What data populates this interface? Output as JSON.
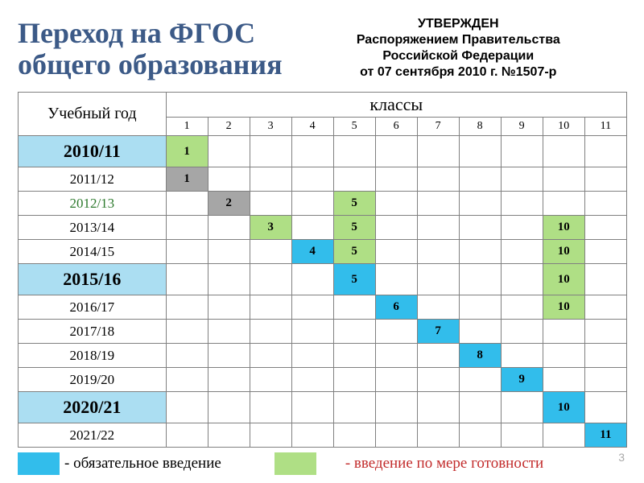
{
  "header": {
    "title": "Переход на ФГОС\nобщего образования",
    "approval": "УТВЕРЖДЕН\nРаспоряжением Правительства\nРоссийской Федерации\nот 07 сентября 2010 г. №1507-р"
  },
  "table": {
    "year_label": "Учебный год",
    "classes_label": "классы",
    "columns": [
      "1",
      "2",
      "3",
      "4",
      "5",
      "6",
      "7",
      "8",
      "9",
      "10",
      "11"
    ],
    "rows": [
      {
        "year": "2010/11",
        "highlight": true,
        "green_text": false,
        "cells": [
          {
            "v": "1",
            "c": "green"
          },
          {},
          {},
          {},
          {},
          {},
          {},
          {},
          {},
          {},
          {}
        ]
      },
      {
        "year": "2011/12",
        "highlight": false,
        "green_text": false,
        "cells": [
          {
            "v": "1",
            "c": "gray"
          },
          {},
          {},
          {},
          {},
          {},
          {},
          {},
          {},
          {},
          {}
        ]
      },
      {
        "year": "2012/13",
        "highlight": false,
        "green_text": true,
        "cells": [
          {},
          {
            "v": "2",
            "c": "gray"
          },
          {},
          {},
          {
            "v": "5",
            "c": "green"
          },
          {},
          {},
          {},
          {},
          {},
          {}
        ]
      },
      {
        "year": "2013/14",
        "highlight": false,
        "green_text": false,
        "cells": [
          {},
          {},
          {
            "v": "3",
            "c": "green"
          },
          {},
          {
            "v": "5",
            "c": "green"
          },
          {},
          {},
          {},
          {},
          {
            "v": "10",
            "c": "green"
          },
          {}
        ]
      },
      {
        "year": "2014/15",
        "highlight": false,
        "green_text": false,
        "cells": [
          {},
          {},
          {},
          {
            "v": "4",
            "c": "blue"
          },
          {
            "v": "5",
            "c": "green"
          },
          {},
          {},
          {},
          {},
          {
            "v": "10",
            "c": "green"
          },
          {}
        ]
      },
      {
        "year": "2015/16",
        "highlight": true,
        "green_text": false,
        "cells": [
          {},
          {},
          {},
          {},
          {
            "v": "5",
            "c": "blue"
          },
          {},
          {},
          {},
          {},
          {
            "v": "10",
            "c": "green"
          },
          {}
        ]
      },
      {
        "year": "2016/17",
        "highlight": false,
        "green_text": false,
        "cells": [
          {},
          {},
          {},
          {},
          {},
          {
            "v": "6",
            "c": "blue"
          },
          {},
          {},
          {},
          {
            "v": "10",
            "c": "green"
          },
          {}
        ]
      },
      {
        "year": "2017/18",
        "highlight": false,
        "green_text": false,
        "cells": [
          {},
          {},
          {},
          {},
          {},
          {},
          {
            "v": "7",
            "c": "blue"
          },
          {},
          {},
          {},
          {}
        ]
      },
      {
        "year": "2018/19",
        "highlight": false,
        "green_text": false,
        "cells": [
          {},
          {},
          {},
          {},
          {},
          {},
          {},
          {
            "v": "8",
            "c": "blue"
          },
          {},
          {},
          {}
        ]
      },
      {
        "year": "2019/20",
        "highlight": false,
        "green_text": false,
        "cells": [
          {},
          {},
          {},
          {},
          {},
          {},
          {},
          {},
          {
            "v": "9",
            "c": "blue"
          },
          {},
          {}
        ]
      },
      {
        "year": "2020/21",
        "highlight": true,
        "green_text": false,
        "cells": [
          {},
          {},
          {},
          {},
          {},
          {},
          {},
          {},
          {},
          {
            "v": "10",
            "c": "blue"
          },
          {}
        ]
      },
      {
        "year": "2021/22",
        "highlight": false,
        "green_text": false,
        "cells": [
          {},
          {},
          {},
          {},
          {},
          {},
          {},
          {},
          {},
          {},
          {
            "v": "11",
            "c": "blue"
          }
        ]
      }
    ]
  },
  "legend": {
    "mandatory": "- обязательное введение",
    "ready": "- введение по мере готовности"
  },
  "page_number": "3",
  "colors": {
    "blue": "#32bdeb",
    "green": "#afdf85",
    "gray": "#a6a6a6",
    "row_hi": "#abdef2",
    "title": "#3c5a87",
    "legend_red": "#c22b2b"
  }
}
